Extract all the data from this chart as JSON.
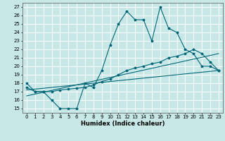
{
  "title": "",
  "xlabel": "Humidex (Indice chaleur)",
  "bg_color": "#c8e8e8",
  "grid_color": "#ffffff",
  "line_color": "#006677",
  "xlim": [
    -0.5,
    23.5
  ],
  "ylim": [
    14.5,
    27.5
  ],
  "xticks": [
    0,
    1,
    2,
    3,
    4,
    5,
    6,
    7,
    8,
    9,
    10,
    11,
    12,
    13,
    14,
    15,
    16,
    17,
    18,
    19,
    20,
    21,
    22,
    23
  ],
  "yticks": [
    15,
    16,
    17,
    18,
    19,
    20,
    21,
    22,
    23,
    24,
    25,
    26,
    27
  ],
  "line1_x": [
    0,
    1,
    2,
    3,
    4,
    5,
    6,
    7,
    8,
    9,
    10,
    11,
    12,
    13,
    14,
    15,
    16,
    17,
    18,
    19,
    20,
    21,
    22,
    23
  ],
  "line1_y": [
    18.0,
    17.0,
    17.0,
    16.0,
    15.0,
    15.0,
    15.0,
    18.0,
    17.5,
    19.5,
    22.5,
    25.0,
    26.5,
    25.5,
    25.5,
    23.0,
    27.0,
    24.5,
    24.0,
    22.0,
    21.5,
    20.0,
    20.0,
    19.5
  ],
  "line2_x": [
    0,
    1,
    2,
    3,
    4,
    5,
    6,
    7,
    8,
    9,
    10,
    11,
    12,
    13,
    14,
    15,
    16,
    17,
    18,
    19,
    20,
    21,
    22,
    23
  ],
  "line2_y": [
    17.5,
    17.0,
    17.0,
    17.0,
    17.2,
    17.3,
    17.4,
    17.5,
    17.8,
    18.2,
    18.5,
    19.0,
    19.5,
    19.8,
    20.0,
    20.3,
    20.5,
    21.0,
    21.2,
    21.5,
    22.0,
    21.5,
    20.5,
    19.5
  ],
  "line3_x": [
    0,
    23
  ],
  "line3_y": [
    17.2,
    19.5
  ],
  "line4_x": [
    0,
    23
  ],
  "line4_y": [
    16.5,
    21.5
  ]
}
